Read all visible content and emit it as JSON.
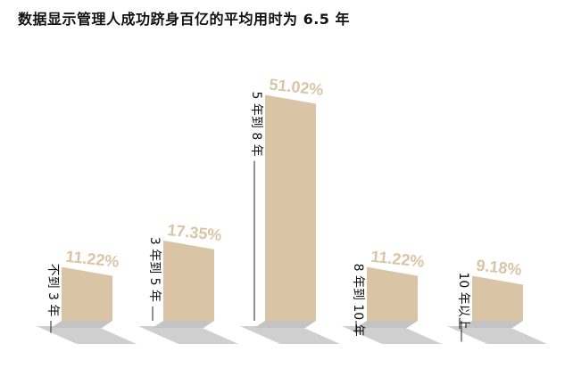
{
  "title": "数据显示管理人成功跻身百亿的平均用时为 6.5 年",
  "colors": {
    "bar": "#d9c4a6",
    "shadow": "#cfcfcf",
    "shadow_inner": "#c4c4c4",
    "value_text": "#d9c4a6",
    "label_text": "#111111",
    "leader_line": "#222222"
  },
  "chart_data": {
    "type": "bar",
    "title": "数据显示管理人成功跻身百亿的平均用时为 6.5 年",
    "categories": [
      "不到 3 年",
      "3 年到 5 年",
      "5 年到 8 年",
      "8 年到 10 年",
      "10 年以上"
    ],
    "values": [
      11.22,
      17.35,
      51.02,
      11.22,
      9.18
    ],
    "value_labels": [
      "11.22%",
      "17.35%",
      "51.02%",
      "11.22%",
      "9.18%"
    ],
    "unit": "%",
    "ylim": [
      0,
      55
    ],
    "grid": false,
    "legend": "none"
  }
}
